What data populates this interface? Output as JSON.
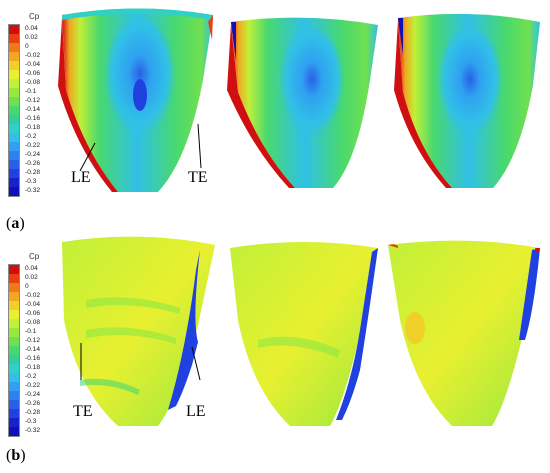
{
  "colorbar": {
    "title": "Cp",
    "labels": [
      "0.04",
      "0.02",
      "0",
      "-0.02",
      "-0.04",
      "-0.06",
      "-0.08",
      "-0.1",
      "-0.12",
      "-0.14",
      "-0.16",
      "-0.18",
      "-0.2",
      "-0.22",
      "-0.24",
      "-0.26",
      "-0.28",
      "-0.3",
      "-0.32"
    ],
    "colors": [
      "#d01010",
      "#e84010",
      "#f07818",
      "#f0a820",
      "#f0d028",
      "#e8f030",
      "#c0f038",
      "#98e840",
      "#70e050",
      "#48d870",
      "#30d098",
      "#30d0c8",
      "#30c0e8",
      "#30a0f0",
      "#3080f0",
      "#2860e8",
      "#2040e0",
      "#1820d0",
      "#1010b8"
    ]
  },
  "panels": {
    "a": {
      "label_open": "(",
      "label_letter": "a",
      "label_close": ")",
      "le": "LE",
      "te": "TE"
    },
    "b": {
      "label_open": "(",
      "label_letter": "b",
      "label_close": ")",
      "le": "LE",
      "te": "TE"
    }
  }
}
